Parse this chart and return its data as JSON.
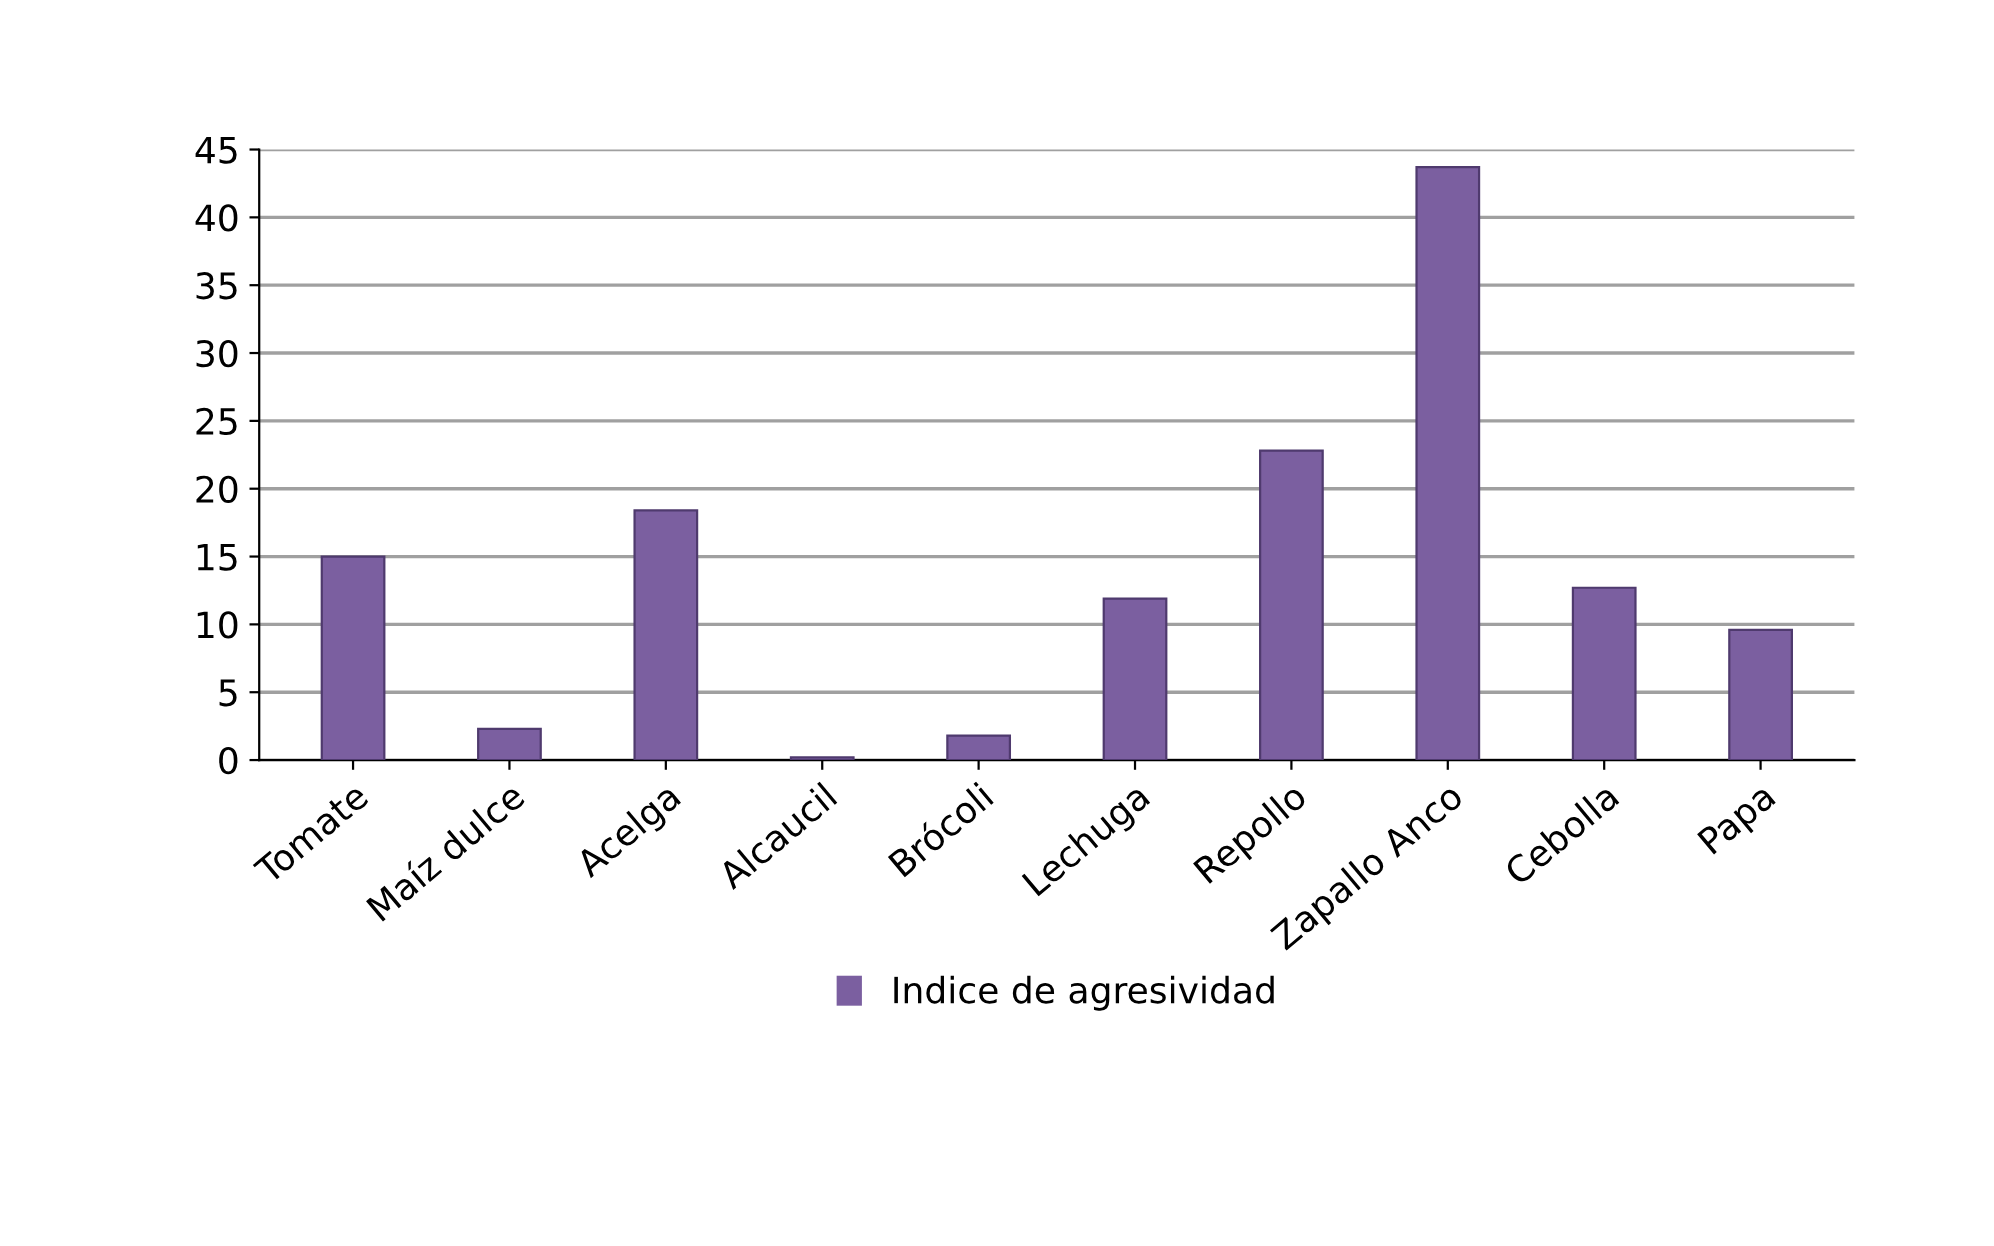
{
  "chart_data": {
    "type": "bar",
    "categories": [
      "Tomate",
      "Maíz dulce",
      "Acelga",
      "Alcaucil",
      "Brócoli",
      "Lechuga",
      "Repollo",
      "Zapallo Anco",
      "Cebolla",
      "Papa"
    ],
    "series": [
      {
        "name": "Indice de agresividad",
        "color": "#7b5fa0",
        "values": [
          15,
          2.3,
          18.4,
          0.2,
          1.8,
          11.9,
          22.8,
          43.7,
          12.7,
          9.6
        ]
      }
    ],
    "ylim": [
      0,
      45
    ],
    "yticks": [
      0,
      5,
      10,
      15,
      20,
      25,
      30,
      35,
      40,
      45
    ],
    "grid": "y",
    "legend": "bottom"
  }
}
